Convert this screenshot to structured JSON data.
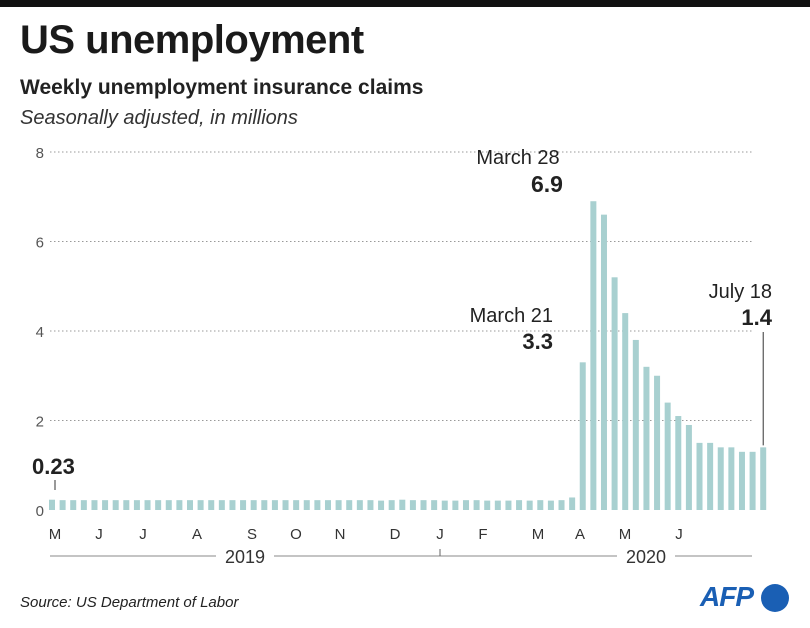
{
  "header": {
    "title": "US unemployment",
    "subtitle": "Weekly unemployment insurance claims",
    "unit": "Seasonally adjusted, in millions"
  },
  "footer": {
    "source": "Source: US Department of Labor",
    "logo_text": "AFP"
  },
  "colors": {
    "bar": "#a8d0d0",
    "text": "#222222",
    "grid": "#999999",
    "logo": "#1a5fb4"
  },
  "chart_data": {
    "type": "bar",
    "title": "Weekly unemployment insurance claims",
    "ylabel": "",
    "xlabel": "",
    "ylim": [
      0,
      8
    ],
    "yticks": [
      0,
      2,
      4,
      6,
      8
    ],
    "grid": true,
    "month_labels": [
      "M",
      "J",
      "J",
      "A",
      "S",
      "O",
      "N",
      "D",
      "J",
      "F",
      "M",
      "A",
      "M",
      "J"
    ],
    "year_labels": [
      "2019",
      "2020"
    ],
    "values": [
      0.23,
      0.22,
      0.22,
      0.22,
      0.22,
      0.22,
      0.22,
      0.22,
      0.22,
      0.22,
      0.22,
      0.22,
      0.22,
      0.22,
      0.22,
      0.22,
      0.22,
      0.22,
      0.22,
      0.22,
      0.22,
      0.22,
      0.22,
      0.22,
      0.22,
      0.22,
      0.22,
      0.22,
      0.22,
      0.22,
      0.22,
      0.21,
      0.22,
      0.23,
      0.22,
      0.22,
      0.22,
      0.21,
      0.21,
      0.22,
      0.22,
      0.21,
      0.21,
      0.21,
      0.22,
      0.21,
      0.22,
      0.21,
      0.22,
      0.28,
      3.3,
      6.9,
      6.6,
      5.2,
      4.4,
      3.8,
      3.2,
      3.0,
      2.4,
      2.1,
      1.9,
      1.5,
      1.5,
      1.4,
      1.4,
      1.3,
      1.3,
      1.4
    ],
    "annotations": [
      {
        "label": "",
        "value": "0.23",
        "index": 0
      },
      {
        "label": "March 21",
        "value": "3.3",
        "index": 50
      },
      {
        "label": "March 28",
        "value": "6.9",
        "index": 51
      },
      {
        "label": "July 18",
        "value": "1.4",
        "index": 67
      }
    ]
  }
}
